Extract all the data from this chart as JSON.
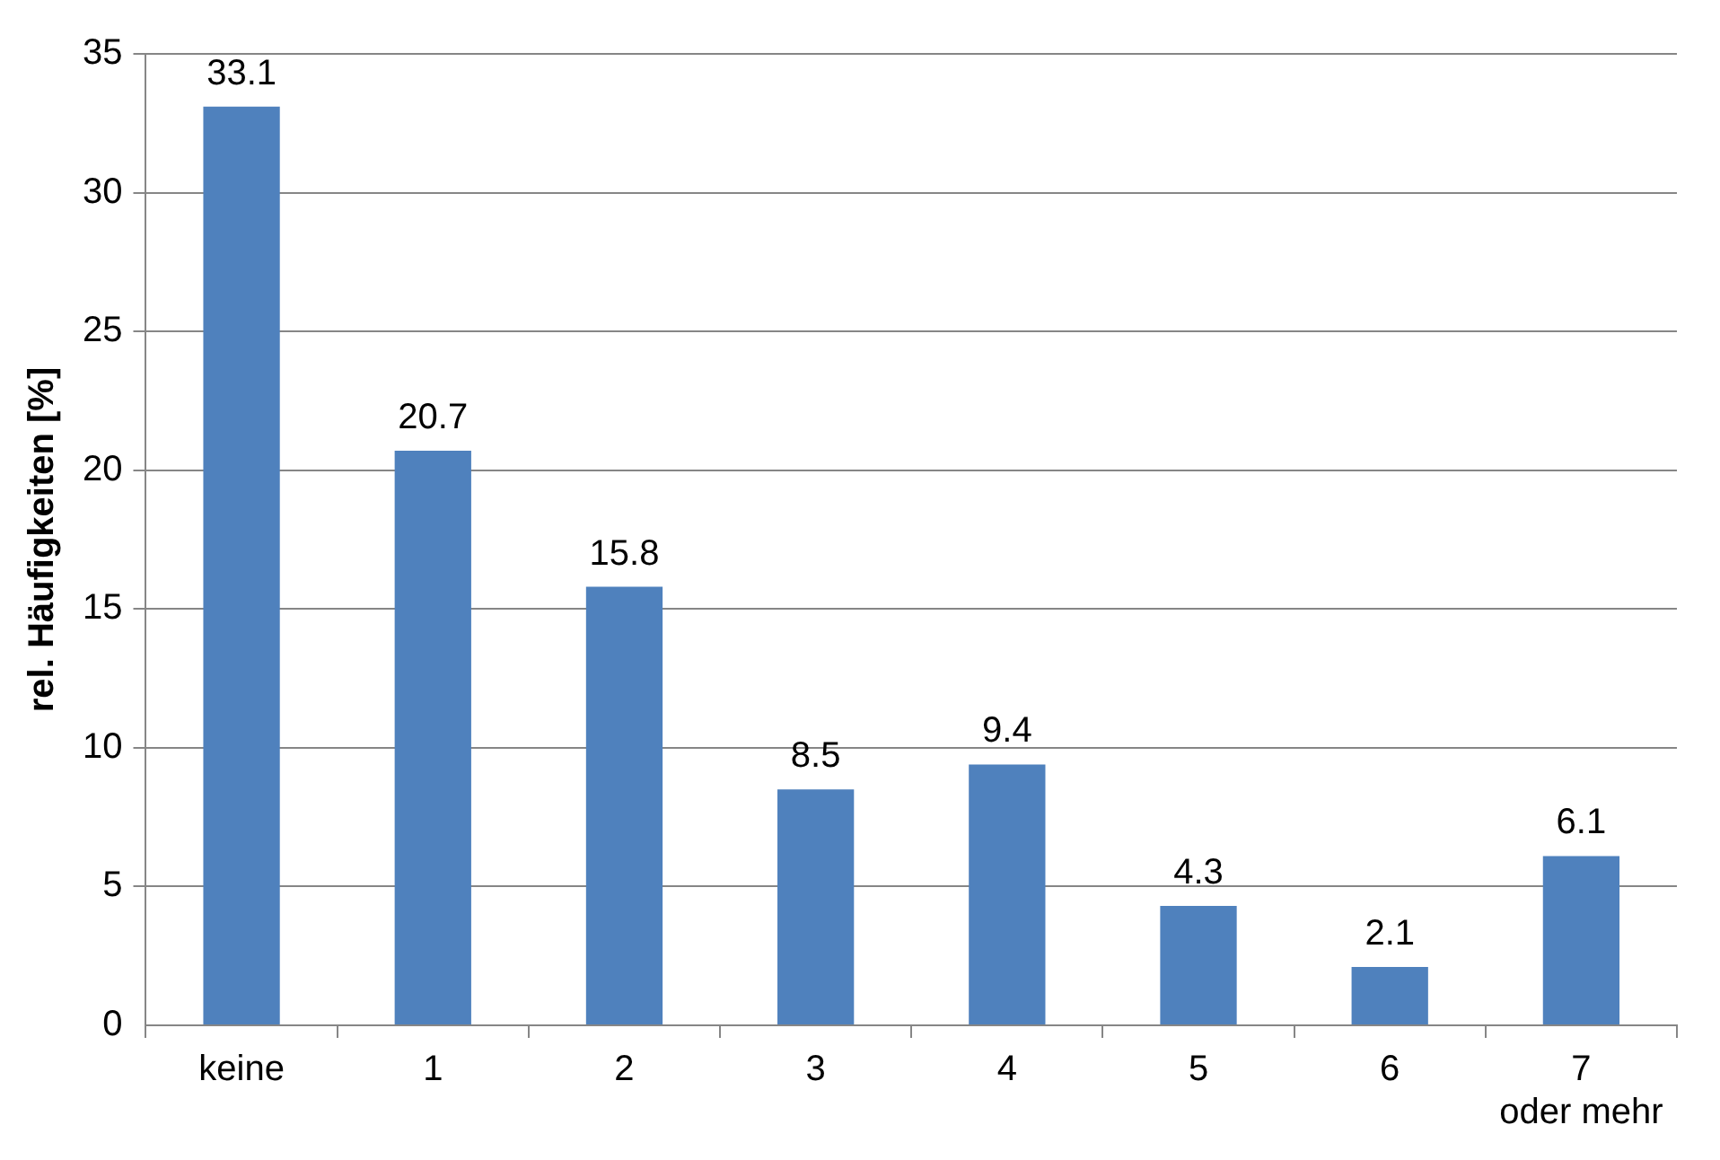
{
  "chart_data": {
    "type": "bar",
    "ylabel": "rel. Häufigkeiten [%]",
    "categories": [
      "keine",
      "1",
      "2",
      "3",
      "4",
      "5",
      "6",
      "7 oder mehr"
    ],
    "values": [
      33.1,
      20.7,
      15.8,
      8.5,
      9.4,
      4.3,
      2.1,
      6.1
    ],
    "color": "#4f81bd",
    "ylim": [
      0,
      35
    ],
    "yticks": [
      0,
      5,
      10,
      15,
      20,
      25,
      30,
      35
    ],
    "grid": "y",
    "data_labels": true
  }
}
